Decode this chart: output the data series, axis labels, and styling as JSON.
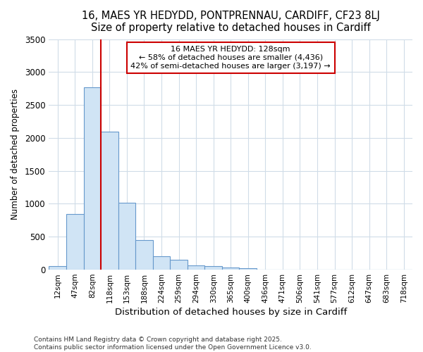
{
  "title1": "16, MAES YR HEDYDD, PONTPRENNAU, CARDIFF, CF23 8LJ",
  "title2": "Size of property relative to detached houses in Cardiff",
  "xlabel": "Distribution of detached houses by size in Cardiff",
  "ylabel": "Number of detached properties",
  "categories": [
    "12sqm",
    "47sqm",
    "82sqm",
    "118sqm",
    "153sqm",
    "188sqm",
    "224sqm",
    "259sqm",
    "294sqm",
    "330sqm",
    "365sqm",
    "400sqm",
    "436sqm",
    "471sqm",
    "506sqm",
    "541sqm",
    "577sqm",
    "612sqm",
    "647sqm",
    "683sqm",
    "718sqm"
  ],
  "values": [
    55,
    850,
    2770,
    2100,
    1020,
    450,
    200,
    150,
    70,
    50,
    30,
    20,
    5,
    5,
    3,
    2,
    1,
    1,
    1,
    0,
    0
  ],
  "bar_color": "#d0e4f5",
  "bar_edge_color": "#6699cc",
  "marker_index": 3,
  "marker_color": "#cc0000",
  "annotation_text": "16 MAES YR HEDYDD: 128sqm\n← 58% of detached houses are smaller (4,436)\n42% of semi-detached houses are larger (3,197) →",
  "annotation_box_color": "#cc0000",
  "ylim": [
    0,
    3500
  ],
  "yticks": [
    0,
    500,
    1000,
    1500,
    2000,
    2500,
    3000,
    3500
  ],
  "footer1": "Contains HM Land Registry data © Crown copyright and database right 2025.",
  "footer2": "Contains public sector information licensed under the Open Government Licence v3.0.",
  "bg_color": "#ffffff",
  "plot_bg_color": "#ffffff",
  "grid_color": "#d0dce8"
}
